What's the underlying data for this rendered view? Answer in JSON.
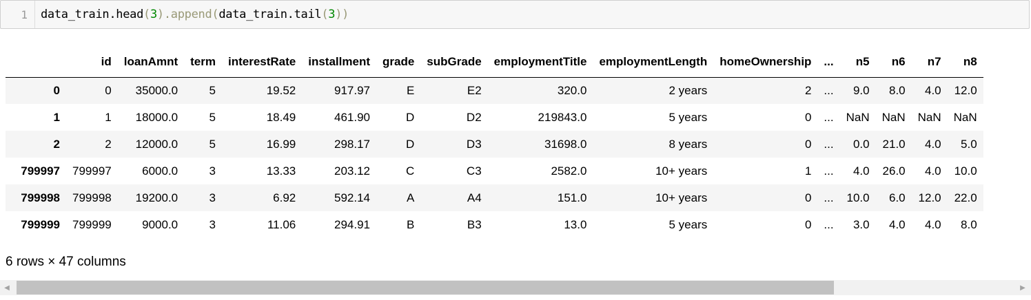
{
  "cell": {
    "line_number": "1",
    "code_parts": {
      "p1": "data_train.head",
      "p2": "(",
      "p3": "3",
      "p4": ").append",
      "p5": "(",
      "p6": "data_train.tail",
      "p7": "(",
      "p8": "3",
      "p9": "))"
    }
  },
  "table": {
    "columns": [
      "",
      "id",
      "loanAmnt",
      "term",
      "interestRate",
      "installment",
      "grade",
      "subGrade",
      "employmentTitle",
      "employmentLength",
      "homeOwnership",
      "...",
      "n5",
      "n6",
      "n7",
      "n8"
    ],
    "rows": [
      [
        "0",
        "0",
        "35000.0",
        "5",
        "19.52",
        "917.97",
        "E",
        "E2",
        "320.0",
        "2 years",
        "2",
        "...",
        "9.0",
        "8.0",
        "4.0",
        "12.0"
      ],
      [
        "1",
        "1",
        "18000.0",
        "5",
        "18.49",
        "461.90",
        "D",
        "D2",
        "219843.0",
        "5 years",
        "0",
        "...",
        "NaN",
        "NaN",
        "NaN",
        "NaN"
      ],
      [
        "2",
        "2",
        "12000.0",
        "5",
        "16.99",
        "298.17",
        "D",
        "D3",
        "31698.0",
        "8 years",
        "0",
        "...",
        "0.0",
        "21.0",
        "4.0",
        "5.0"
      ],
      [
        "799997",
        "799997",
        "6000.0",
        "3",
        "13.33",
        "203.12",
        "C",
        "C3",
        "2582.0",
        "10+ years",
        "1",
        "...",
        "4.0",
        "26.0",
        "4.0",
        "10.0"
      ],
      [
        "799998",
        "799998",
        "19200.0",
        "3",
        "6.92",
        "592.14",
        "A",
        "A4",
        "151.0",
        "10+ years",
        "0",
        "...",
        "10.0",
        "6.0",
        "12.0",
        "22.0"
      ],
      [
        "799999",
        "799999",
        "9000.0",
        "3",
        "11.06",
        "294.91",
        "B",
        "B3",
        "13.0",
        "5 years",
        "0",
        "...",
        "3.0",
        "4.0",
        "4.0",
        "8.0"
      ]
    ]
  },
  "summary": "6 rows × 47 columns",
  "scrollbar": {
    "left_icon": "scroll-left-arrow-icon",
    "right_icon": "scroll-right-arrow-icon",
    "left_glyph": "◀",
    "right_glyph": "▶"
  }
}
